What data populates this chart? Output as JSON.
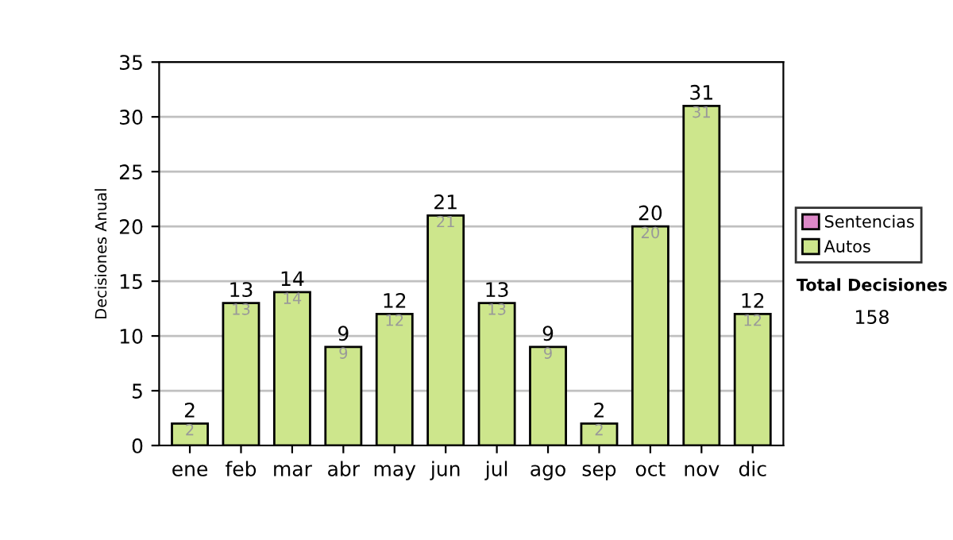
{
  "chart_data": {
    "type": "bar",
    "ylabel": "Decisiones Anual",
    "stacked": true,
    "categories": [
      "ene",
      "feb",
      "mar",
      "abr",
      "may",
      "jun",
      "jul",
      "ago",
      "sep",
      "oct",
      "nov",
      "dic"
    ],
    "series": [
      {
        "name": "Sentencias",
        "color": "#dd88c8",
        "values": [
          0,
          0,
          0,
          0,
          0,
          0,
          0,
          0,
          0,
          0,
          0,
          0
        ]
      },
      {
        "name": "Autos",
        "color": "#cde68c",
        "values": [
          2,
          13,
          14,
          9,
          12,
          21,
          13,
          9,
          2,
          20,
          31,
          12
        ],
        "value_labels": [
          "2",
          "13",
          "14",
          "9",
          "12",
          "21",
          "13",
          "9",
          "2",
          "20",
          "31",
          "12"
        ]
      }
    ],
    "totals": [
      "2",
      "13",
      "14",
      "9",
      "12",
      "21",
      "13",
      "9",
      "2",
      "20",
      "31",
      "12"
    ],
    "ylim": [
      0,
      35
    ],
    "yticks": [
      0,
      5,
      10,
      15,
      20,
      25,
      30,
      35
    ],
    "grid": "y",
    "legend": "right",
    "annotations": [
      "Total Decisiones",
      "158"
    ]
  }
}
